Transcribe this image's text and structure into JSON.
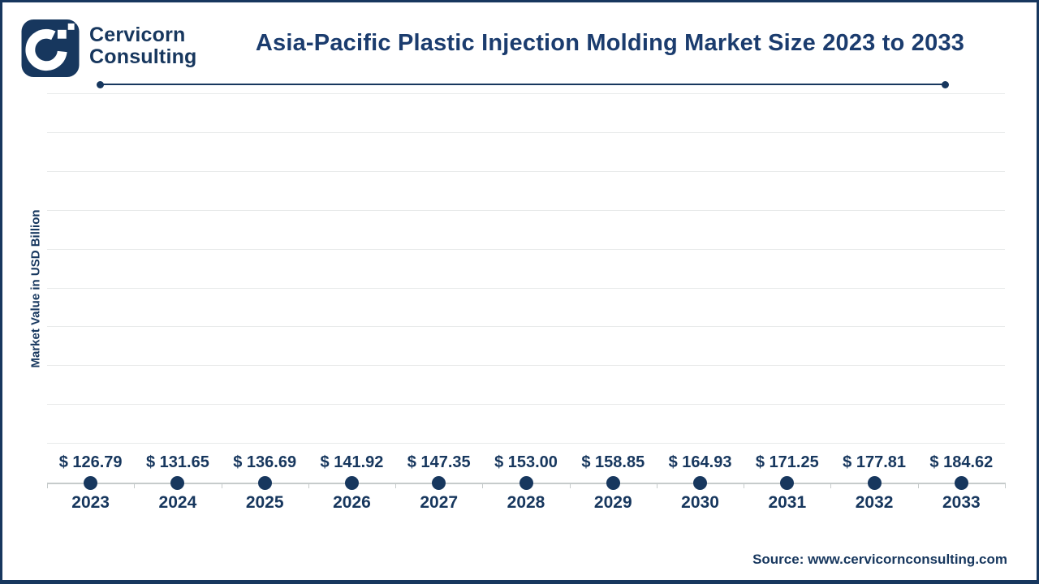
{
  "header": {
    "brand": {
      "line1": "Cervicorn",
      "line2": "Consulting"
    }
  },
  "chart_data": {
    "type": "bar",
    "variant": "lollipop",
    "title": "Asia-Pacific Plastic Injection Molding Market Size 2023 to 2033",
    "categories": [
      "2023",
      "2024",
      "2025",
      "2026",
      "2027",
      "2028",
      "2029",
      "2030",
      "2031",
      "2032",
      "2033"
    ],
    "values": [
      126.79,
      131.65,
      136.69,
      141.92,
      147.35,
      153.0,
      158.85,
      164.93,
      171.25,
      177.81,
      184.62
    ],
    "value_prefix": "$ ",
    "value_labels": [
      "$ 126.79",
      "$ 131.65",
      "$ 136.69",
      "$ 141.92",
      "$ 147.35",
      "$ 153.00",
      "$ 158.85",
      "$ 164.93",
      "$ 171.25",
      "$ 177.81",
      "$ 184.62"
    ],
    "xlabel": "",
    "ylabel": "Market Value in USD Billion",
    "ylim": [
      0,
      200
    ],
    "gridline_step": 20,
    "grid": true,
    "legend": false
  },
  "footer": {
    "source": "Source: www.cervicornconsulting.com"
  },
  "colors": {
    "navy": "#17375E",
    "title_navy": "#1B3C6E",
    "gridline": "#E8EAEA",
    "axis_line": "#C6CBCB",
    "background": "#FFFFFF",
    "logo_mark_white": "#FFFFFF"
  }
}
